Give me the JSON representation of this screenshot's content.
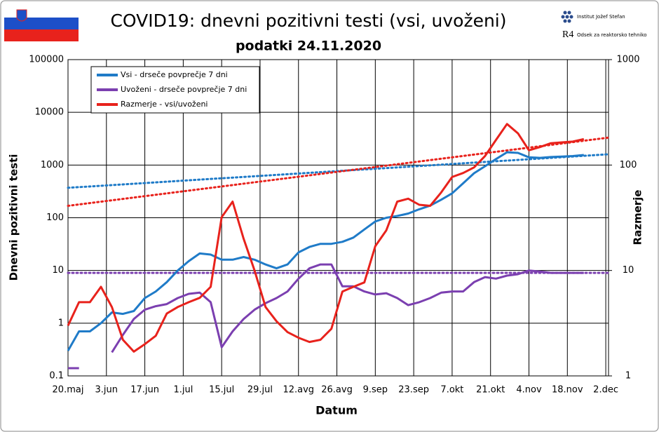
{
  "chart_data": {
    "type": "line",
    "title": "COVID19: dnevni pozitivni testi (vsi, uvoženi)",
    "subtitle": "podatki 24.11.2020",
    "xlabel": "Datum",
    "ylabel": "Dnevni pozitivni testi",
    "y2label": "Razmerje",
    "logo": {
      "institute": "Institut Jožef Stefan",
      "mark": "R4",
      "department": "Odsek za reaktorsko tehniko"
    },
    "ylog": true,
    "y2log": true,
    "grid": true,
    "legend": "upper left",
    "xlim": [
      0,
      197
    ],
    "ylim": [
      0.1,
      100000
    ],
    "y2lim": [
      1,
      1000
    ],
    "xticks": [
      {
        "value": 0,
        "label": "20.maj"
      },
      {
        "value": 14,
        "label": "3.jun"
      },
      {
        "value": 28,
        "label": "17.jun"
      },
      {
        "value": 42,
        "label": "1.jul"
      },
      {
        "value": 56,
        "label": "15.jul"
      },
      {
        "value": 70,
        "label": "29.jul"
      },
      {
        "value": 84,
        "label": "12.avg"
      },
      {
        "value": 98,
        "label": "26.avg"
      },
      {
        "value": 112,
        "label": "9.sep"
      },
      {
        "value": 126,
        "label": "23.sep"
      },
      {
        "value": 140,
        "label": "7.okt"
      },
      {
        "value": 154,
        "label": "21.okt"
      },
      {
        "value": 168,
        "label": "4.nov"
      },
      {
        "value": 182,
        "label": "18.nov"
      },
      {
        "value": 196,
        "label": "2.dec"
      }
    ],
    "yticks": [
      0.1,
      1,
      10,
      100,
      1000,
      10000,
      100000
    ],
    "y2ticks": [
      1,
      10,
      100,
      1000
    ],
    "x": [
      0,
      4,
      8,
      12,
      16,
      20,
      24,
      28,
      32,
      36,
      40,
      44,
      48,
      52,
      56,
      60,
      64,
      68,
      72,
      76,
      80,
      84,
      88,
      92,
      96,
      100,
      104,
      108,
      112,
      116,
      120,
      124,
      128,
      132,
      136,
      140,
      144,
      148,
      152,
      156,
      160,
      164,
      168,
      172,
      176,
      180,
      184,
      188
    ],
    "series": [
      {
        "name": "Vsi - drseče povprečje 7 dni",
        "color": "#1f7bc8",
        "axis": "y",
        "values": [
          0.3,
          0.7,
          0.7,
          1.0,
          1.6,
          1.5,
          1.7,
          3,
          4,
          6,
          10,
          15,
          21,
          20,
          16,
          16,
          18,
          16,
          13,
          11,
          13,
          22,
          28,
          32,
          32,
          35,
          42,
          60,
          85,
          100,
          108,
          120,
          145,
          170,
          220,
          290,
          450,
          700,
          950,
          1300,
          1750,
          1700,
          1400,
          1370,
          1420,
          1450,
          1480,
          1550
        ]
      },
      {
        "name": "Uvoženi - drseče povprečje 7 dni",
        "color": "#7b3fb0",
        "axis": "y",
        "values": [
          0.14,
          0.14,
          null,
          null,
          0.28,
          0.6,
          1.2,
          1.8,
          2.1,
          2.3,
          3,
          3.6,
          3.8,
          2.5,
          0.35,
          0.7,
          1.2,
          1.8,
          2.4,
          3,
          4,
          7,
          11,
          13,
          13,
          5,
          5,
          4,
          3.5,
          3.7,
          3,
          2.2,
          2.5,
          3,
          3.8,
          4,
          4,
          6,
          7.5,
          7,
          8,
          8.5,
          10,
          9.5,
          9,
          9,
          9,
          9
        ]
      },
      {
        "name": "Razmerje - vsi/uvoženi",
        "color": "#e8221c",
        "axis": "y2",
        "values": [
          3,
          5,
          5,
          7,
          4.5,
          2.2,
          1.7,
          2,
          2.4,
          3.9,
          4.5,
          5,
          5.5,
          7,
          32,
          45,
          20,
          10,
          4.5,
          3.3,
          2.6,
          2.3,
          2.1,
          2.2,
          2.8,
          6.3,
          7,
          7.7,
          17,
          24,
          45,
          48,
          42,
          41,
          55,
          77,
          84,
          95,
          122,
          173,
          245,
          200,
          138,
          148,
          161,
          164,
          167,
          176
        ]
      }
    ],
    "trendlines": [
      {
        "color": "#1f7bc8",
        "axis": "y",
        "x": [
          0,
          197
        ],
        "values": [
          370,
          1600
        ]
      },
      {
        "color": "#7b3fb0",
        "axis": "y",
        "x": [
          0,
          197
        ],
        "values": [
          9,
          9
        ]
      },
      {
        "color": "#e8221c",
        "axis": "y2",
        "x": [
          0,
          197
        ],
        "values": [
          41,
          182
        ]
      }
    ]
  }
}
